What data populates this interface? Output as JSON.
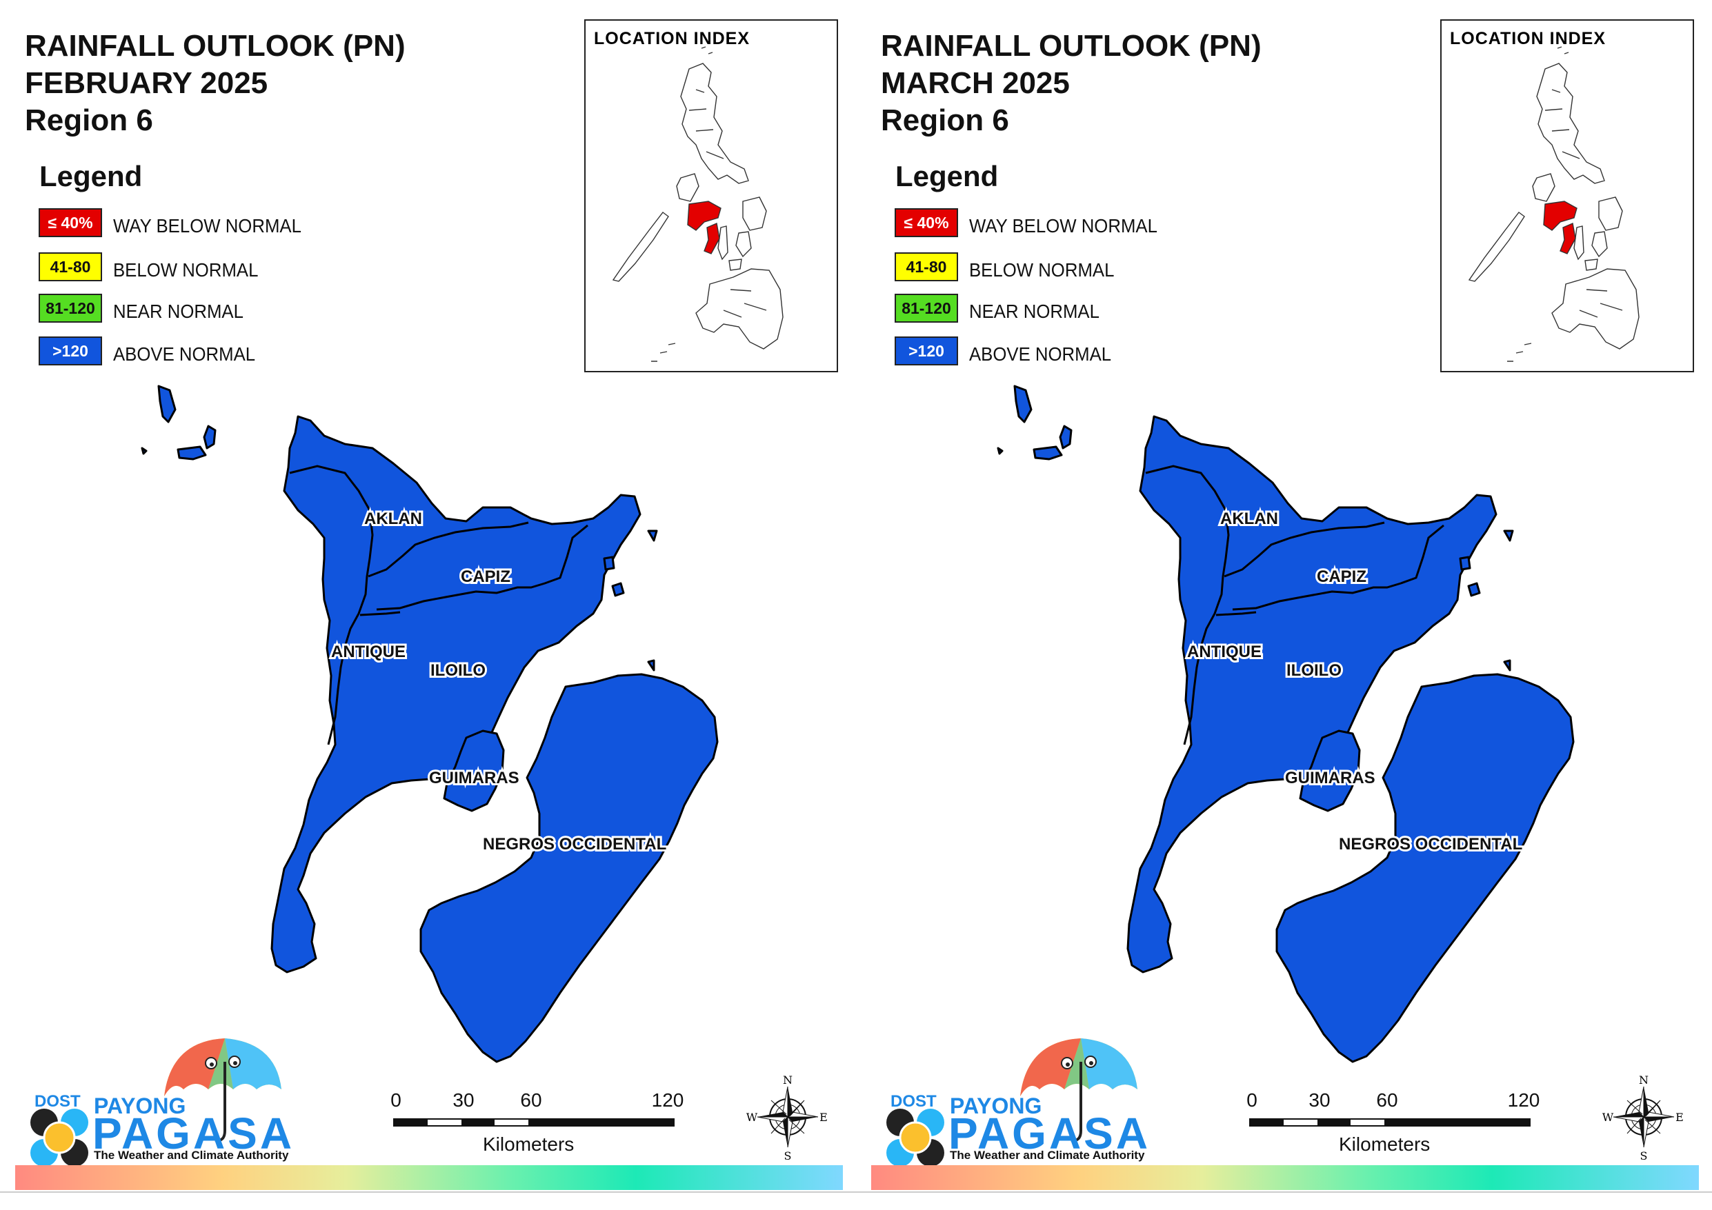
{
  "colors": {
    "way_below": "#e30000",
    "below": "#ffff00",
    "near": "#55dd22",
    "above": "#1155dd",
    "province_fill": "#1155dd"
  },
  "legend": {
    "title": "Legend",
    "items": [
      {
        "range": "≤ 40%",
        "label": "WAY BELOW NORMAL"
      },
      {
        "range": "41-80",
        "label": "BELOW NORMAL"
      },
      {
        "range": "81-120",
        "label": "NEAR NORMAL"
      },
      {
        "range": ">120",
        "label": "ABOVE NORMAL"
      }
    ]
  },
  "location_index": {
    "title": "LOCATION INDEX",
    "highlight": "Region 6"
  },
  "provinces": [
    "AKLAN",
    "CAPIZ",
    "ANTIQUE",
    "ILOILO",
    "GUIMARAS",
    "NEGROS OCCIDENTAL"
  ],
  "scale": {
    "ticks": [
      "0",
      "30",
      "60",
      "120"
    ],
    "unit": "Kilometers"
  },
  "compass": {
    "n": "N",
    "e": "E",
    "s": "S",
    "w": "W"
  },
  "logo": {
    "agency": "DOST",
    "brand_top": "PAYONG",
    "brand_main": "PAGASA",
    "tagline": "The Weather and Climate Authority"
  },
  "panels": [
    {
      "title_line1": "RAINFALL OUTLOOK (PN)",
      "title_line2": "FEBRUARY 2025",
      "title_line3": "Region 6",
      "category": "ABOVE NORMAL"
    },
    {
      "title_line1": "RAINFALL OUTLOOK (PN)",
      "title_line2": "MARCH 2025",
      "title_line3": "Region 6",
      "category": "ABOVE NORMAL"
    }
  ]
}
